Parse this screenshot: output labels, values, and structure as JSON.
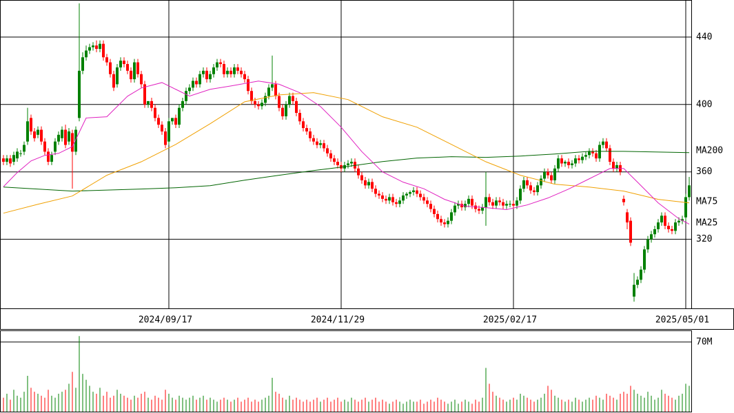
{
  "chart_data": [
    {
      "type": "candlestick",
      "categories": [
        null,
        null,
        null,
        null,
        null,
        null,
        null,
        null,
        null,
        null,
        null,
        null,
        null,
        null,
        null,
        null,
        null,
        null,
        null,
        null,
        null,
        null,
        null,
        null,
        null,
        null,
        null,
        null,
        null,
        null,
        null,
        null,
        null,
        null,
        null,
        null,
        null,
        null,
        null,
        null,
        null,
        null,
        null,
        null,
        null,
        null,
        null,
        null,
        "2024/09/17",
        null,
        null,
        null,
        null,
        null,
        null,
        null,
        null,
        null,
        null,
        null,
        null,
        null,
        null,
        null,
        null,
        null,
        null,
        null,
        null,
        null,
        null,
        null,
        null,
        null,
        null,
        null,
        null,
        null,
        null,
        null,
        null,
        null,
        null,
        null,
        null,
        null,
        null,
        null,
        null,
        null,
        null,
        null,
        null,
        null,
        null,
        null,
        null,
        null,
        "2024/11/29",
        null,
        null,
        null,
        null,
        null,
        null,
        null,
        null,
        null,
        null,
        null,
        null,
        null,
        null,
        null,
        null,
        null,
        null,
        null,
        null,
        null,
        null,
        null,
        null,
        null,
        null,
        null,
        null,
        null,
        null,
        null,
        null,
        null,
        null,
        null,
        null,
        null,
        null,
        null,
        null,
        null,
        null,
        null,
        null,
        null,
        null,
        null,
        null,
        null,
        "2025/02/17",
        null,
        null,
        null,
        null,
        null,
        null,
        null,
        null,
        null,
        null,
        null,
        null,
        null,
        null,
        null,
        null,
        null,
        null,
        null,
        null,
        null,
        null,
        null,
        null,
        null,
        null,
        null,
        null,
        null,
        null,
        null,
        null,
        null,
        null,
        null,
        null,
        null,
        null,
        null,
        null,
        null,
        null,
        null,
        null,
        null,
        null,
        null,
        null,
        null,
        "2025/05/01",
        null
      ],
      "open": [
        368,
        366,
        368,
        366,
        368,
        371,
        372,
        378,
        392,
        384,
        382,
        385,
        378,
        372,
        366,
        372,
        378,
        380,
        385,
        378,
        383,
        372,
        392,
        420,
        428,
        432,
        434,
        435,
        433,
        436,
        428,
        425,
        418,
        412,
        422,
        426,
        424,
        420,
        415,
        425,
        418,
        412,
        400,
        402,
        398,
        392,
        388,
        384,
        378,
        390,
        392,
        388,
        398,
        402,
        408,
        410,
        414,
        412,
        418,
        420,
        415,
        418,
        422,
        425,
        424,
        418,
        420,
        418,
        422,
        420,
        418,
        415,
        408,
        402,
        400,
        399,
        401,
        405,
        410,
        412,
        405,
        398,
        393,
        400,
        405,
        402,
        395,
        390,
        386,
        384,
        380,
        378,
        376,
        377,
        374,
        371,
        368,
        366,
        364,
        362,
        364,
        365,
        366,
        362,
        358,
        355,
        352,
        354,
        350,
        347,
        346,
        344,
        343,
        345,
        342,
        341,
        343,
        346,
        347,
        348,
        349,
        347,
        345,
        343,
        341,
        338,
        335,
        332,
        330,
        329,
        331,
        336,
        340,
        341,
        339,
        341,
        344,
        340,
        338,
        337,
        339,
        345,
        342,
        340,
        343,
        342,
        340,
        341,
        341,
        340,
        343,
        350,
        355,
        352,
        349,
        348,
        352,
        356,
        360,
        358,
        355,
        362,
        368,
        365,
        366,
        364,
        365,
        368,
        367,
        369,
        370,
        372,
        371,
        368,
        376,
        378,
        374,
        366,
        362,
        364,
        344,
        336,
        331,
        286,
        293,
        296,
        302,
        314,
        320,
        323,
        326,
        330,
        334,
        328,
        326,
        325,
        330,
        331,
        333,
        345
      ],
      "high": [
        370,
        370,
        370,
        372,
        374,
        373,
        378,
        398,
        394,
        386,
        387,
        387,
        380,
        374,
        372,
        380,
        384,
        387,
        388,
        386,
        385,
        387,
        460,
        431,
        435,
        436,
        437,
        438,
        438,
        438,
        430,
        427,
        420,
        424,
        428,
        428,
        426,
        422,
        427,
        427,
        420,
        414,
        402,
        404,
        400,
        394,
        390,
        386,
        392,
        392,
        394,
        400,
        404,
        410,
        412,
        416,
        416,
        420,
        422,
        422,
        420,
        424,
        427,
        427,
        426,
        422,
        422,
        424,
        424,
        422,
        420,
        417,
        410,
        404,
        402,
        403,
        407,
        412,
        429,
        414,
        407,
        400,
        402,
        407,
        407,
        404,
        397,
        392,
        388,
        386,
        382,
        380,
        379,
        379,
        376,
        373,
        370,
        368,
        366,
        366,
        367,
        368,
        368,
        364,
        360,
        357,
        356,
        356,
        352,
        349,
        348,
        346,
        347,
        347,
        344,
        345,
        348,
        348,
        349,
        351,
        351,
        349,
        347,
        345,
        343,
        340,
        337,
        334,
        332,
        333,
        338,
        342,
        343,
        343,
        343,
        346,
        346,
        342,
        340,
        341,
        360,
        347,
        344,
        345,
        345,
        344,
        343,
        343,
        343,
        345,
        352,
        357,
        357,
        354,
        351,
        354,
        358,
        362,
        362,
        360,
        364,
        370,
        370,
        367,
        368,
        367,
        370,
        370,
        371,
        372,
        374,
        374,
        373,
        378,
        380,
        380,
        376,
        368,
        366,
        366,
        346,
        338,
        333,
        300,
        298,
        304,
        316,
        322,
        325,
        328,
        332,
        336,
        336,
        330,
        328,
        332,
        333,
        334,
        347,
        357
      ],
      "low": [
        364,
        364,
        363,
        364,
        366,
        369,
        370,
        376,
        382,
        378,
        380,
        376,
        370,
        364,
        364,
        370,
        376,
        378,
        374,
        376,
        350,
        370,
        390,
        418,
        426,
        430,
        432,
        431,
        431,
        426,
        423,
        416,
        408,
        410,
        420,
        422,
        418,
        413,
        413,
        416,
        410,
        398,
        398,
        396,
        390,
        386,
        382,
        374,
        376,
        388,
        386,
        386,
        396,
        400,
        406,
        408,
        410,
        410,
        416,
        413,
        413,
        416,
        420,
        422,
        416,
        416,
        416,
        416,
        418,
        416,
        413,
        406,
        400,
        398,
        397,
        397,
        399,
        403,
        408,
        403,
        396,
        391,
        391,
        398,
        400,
        393,
        388,
        384,
        382,
        378,
        376,
        374,
        374,
        372,
        369,
        366,
        364,
        362,
        360,
        360,
        362,
        363,
        360,
        356,
        353,
        350,
        350,
        348,
        345,
        344,
        342,
        341,
        341,
        340,
        339,
        339,
        341,
        344,
        345,
        346,
        345,
        343,
        341,
        339,
        336,
        333,
        330,
        328,
        327,
        327,
        329,
        334,
        338,
        337,
        337,
        339,
        338,
        336,
        335,
        335,
        328,
        340,
        338,
        338,
        340,
        338,
        338,
        339,
        338,
        338,
        341,
        348,
        350,
        347,
        346,
        346,
        350,
        354,
        356,
        353,
        353,
        360,
        363,
        363,
        362,
        362,
        363,
        365,
        365,
        367,
        368,
        369,
        366,
        366,
        374,
        372,
        364,
        360,
        360,
        358,
        340,
        326,
        316,
        283,
        291,
        294,
        300,
        312,
        318,
        321,
        324,
        328,
        326,
        324,
        323,
        323,
        328,
        329,
        331,
        343
      ],
      "close": [
        366,
        368,
        365,
        370,
        372,
        371,
        376,
        390,
        384,
        380,
        385,
        378,
        372,
        366,
        370,
        378,
        382,
        385,
        376,
        384,
        372,
        385,
        420,
        428,
        432,
        434,
        435,
        433,
        436,
        428,
        425,
        418,
        410,
        422,
        426,
        424,
        420,
        415,
        425,
        418,
        412,
        400,
        402,
        398,
        392,
        388,
        384,
        376,
        390,
        392,
        388,
        398,
        402,
        408,
        410,
        414,
        412,
        418,
        420,
        415,
        418,
        422,
        425,
        424,
        418,
        420,
        418,
        422,
        420,
        418,
        415,
        408,
        402,
        400,
        399,
        401,
        405,
        410,
        412,
        405,
        398,
        393,
        400,
        405,
        402,
        395,
        390,
        386,
        384,
        380,
        378,
        376,
        377,
        374,
        371,
        368,
        366,
        364,
        362,
        364,
        365,
        366,
        362,
        358,
        355,
        352,
        354,
        350,
        347,
        346,
        344,
        343,
        345,
        342,
        341,
        343,
        346,
        347,
        348,
        349,
        347,
        345,
        343,
        341,
        338,
        335,
        332,
        330,
        329,
        331,
        336,
        340,
        341,
        339,
        341,
        344,
        340,
        338,
        337,
        339,
        345,
        342,
        340,
        343,
        342,
        340,
        341,
        341,
        340,
        343,
        350,
        355,
        352,
        349,
        348,
        352,
        356,
        360,
        358,
        355,
        362,
        368,
        365,
        366,
        364,
        365,
        368,
        367,
        369,
        370,
        372,
        371,
        368,
        376,
        378,
        374,
        366,
        362,
        364,
        360,
        342,
        330,
        318,
        293,
        296,
        302,
        314,
        320,
        323,
        326,
        330,
        334,
        328,
        326,
        325,
        330,
        331,
        332,
        345,
        352
      ],
      "up_color": "#008000",
      "down_color": "#ff0000",
      "ylim": [
        279,
        462
      ],
      "yticks": [
        320,
        360,
        400,
        440
      ],
      "grid": true,
      "lines": [
        {
          "name": "MA200",
          "color": "#006400",
          "x": [
            0,
            20,
            40,
            50,
            60,
            70,
            80,
            90,
            100,
            110,
            120,
            130,
            140,
            150,
            160,
            170,
            180,
            199
          ],
          "values": [
            351,
            348.6,
            349.8,
            350.6,
            351.8,
            355.1,
            358,
            360.8,
            363.3,
            366.1,
            368.2,
            369,
            368.6,
            369.4,
            370.6,
            372.2,
            372.2,
            371.4
          ]
        },
        {
          "name": "MA75",
          "color": "#f0a000",
          "x": [
            0,
            10,
            20,
            30,
            40,
            50,
            60,
            70,
            80,
            90,
            100,
            110,
            120,
            130,
            140,
            150,
            160,
            170,
            180,
            190,
            199
          ],
          "values": [
            335.5,
            340.8,
            345.7,
            358,
            366,
            376.3,
            388.6,
            401.6,
            405.7,
            407,
            402.9,
            392.7,
            386.5,
            376.3,
            366,
            358,
            352.7,
            351,
            348.6,
            343.7,
            341.6
          ]
        },
        {
          "name": "MA25",
          "color": "#e020c0",
          "x": [
            0,
            4,
            8,
            12,
            16,
            20,
            24,
            30,
            36,
            40,
            46,
            50,
            54,
            60,
            66,
            74,
            80,
            86,
            92,
            98,
            104,
            110,
            116,
            122,
            128,
            134,
            140,
            146,
            152,
            158,
            164,
            170,
            176,
            180,
            184,
            190,
            196,
            199
          ],
          "values": [
            351.2,
            359.6,
            366.5,
            369.8,
            371,
            375,
            392,
            392.7,
            404.9,
            409.8,
            413,
            409,
            405,
            409,
            411,
            413.9,
            412,
            407,
            398.8,
            386.5,
            372,
            360,
            353.9,
            350,
            343.7,
            339.6,
            338.8,
            337.6,
            340.4,
            344.5,
            349.8,
            355.9,
            362,
            362,
            353.9,
            341.6,
            332.2,
            329
          ]
        }
      ]
    },
    {
      "type": "bar",
      "values": [
        14,
        18,
        12,
        22,
        16,
        14,
        20,
        36,
        24,
        20,
        18,
        16,
        14,
        22,
        16,
        14,
        18,
        20,
        22,
        28,
        40,
        24,
        76,
        38,
        32,
        26,
        20,
        18,
        24,
        16,
        20,
        14,
        16,
        22,
        18,
        16,
        14,
        12,
        16,
        14,
        18,
        20,
        14,
        12,
        16,
        14,
        12,
        22,
        18,
        14,
        12,
        16,
        14,
        12,
        14,
        16,
        12,
        14,
        16,
        12,
        14,
        12,
        10,
        12,
        14,
        12,
        10,
        12,
        14,
        10,
        12,
        14,
        10,
        12,
        10,
        12,
        14,
        16,
        34,
        20,
        18,
        14,
        12,
        16,
        12,
        14,
        12,
        10,
        12,
        10,
        12,
        14,
        10,
        12,
        14,
        10,
        12,
        14,
        10,
        12,
        10,
        14,
        12,
        10,
        12,
        14,
        10,
        12,
        14,
        10,
        12,
        10,
        8,
        10,
        12,
        10,
        8,
        10,
        12,
        10,
        10,
        12,
        8,
        10,
        12,
        10,
        14,
        12,
        10,
        8,
        10,
        12,
        8,
        10,
        12,
        10,
        8,
        12,
        10,
        14,
        44,
        28,
        20,
        16,
        14,
        12,
        10,
        12,
        14,
        12,
        18,
        16,
        14,
        12,
        10,
        12,
        14,
        18,
        26,
        22,
        16,
        14,
        12,
        10,
        12,
        10,
        14,
        12,
        10,
        12,
        14,
        12,
        16,
        14,
        12,
        18,
        16,
        14,
        12,
        18,
        20,
        18,
        26,
        22,
        18,
        16,
        14,
        20,
        16,
        12,
        14,
        22,
        18,
        16,
        14,
        12,
        16,
        18,
        28,
        26
      ],
      "ylim": [
        0,
        81
      ],
      "yticks": [
        {
          "value": 70,
          "label": "70M"
        }
      ],
      "grid": true
    }
  ]
}
